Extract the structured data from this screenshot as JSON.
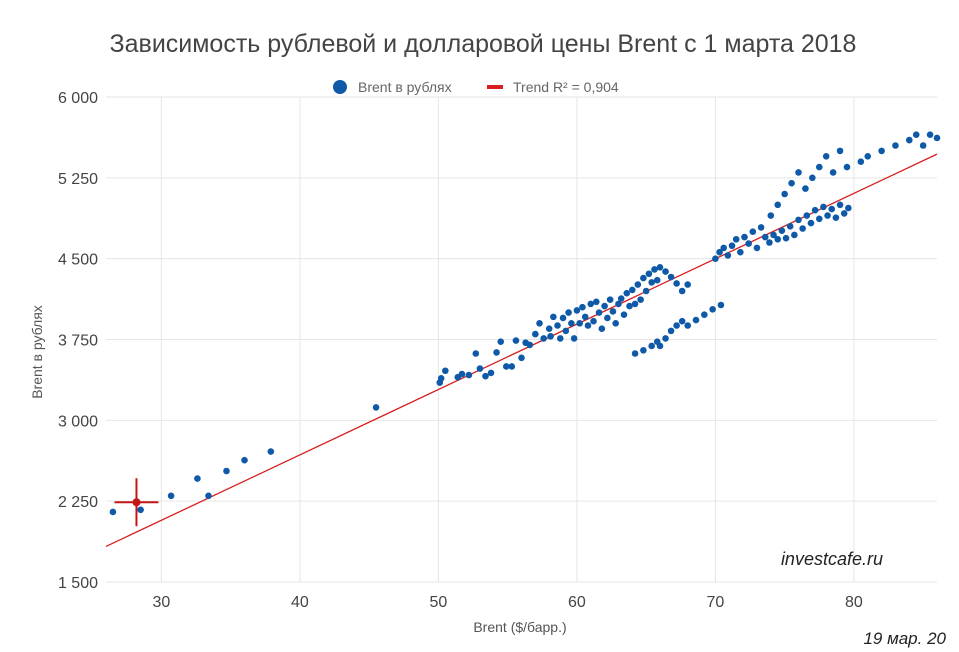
{
  "chart_data": {
    "type": "scatter",
    "title": "Зависимость рублевой и долларовой цены Brent с 1 марта 2018",
    "xlabel": "Brent ($/барр.)",
    "ylabel": "Brent в рублях",
    "xlim": [
      26,
      86
    ],
    "ylim": [
      1500,
      6000
    ],
    "x_ticks": [
      30,
      40,
      50,
      60,
      70,
      80
    ],
    "y_ticks": [
      1500,
      2250,
      3000,
      3750,
      4500,
      5250,
      6000
    ],
    "y_tick_labels": [
      "1 500",
      "2 250",
      "3 000",
      "3 750",
      "4 500",
      "5 250",
      "6 000"
    ],
    "grid": true,
    "legend_position": "top-center",
    "series": [
      {
        "name": "Brent в рублях",
        "color": "#0f5aa8",
        "points": [
          [
            26.5,
            2150
          ],
          [
            28.5,
            2170
          ],
          [
            30.7,
            2300
          ],
          [
            32.6,
            2460
          ],
          [
            33.4,
            2300
          ],
          [
            34.7,
            2530
          ],
          [
            36.0,
            2630
          ],
          [
            37.9,
            2710
          ],
          [
            45.5,
            3120
          ],
          [
            50.1,
            3350
          ],
          [
            50.2,
            3390
          ],
          [
            50.5,
            3460
          ],
          [
            51.4,
            3400
          ],
          [
            51.7,
            3430
          ],
          [
            52.2,
            3420
          ],
          [
            52.7,
            3620
          ],
          [
            53.0,
            3480
          ],
          [
            53.4,
            3410
          ],
          [
            53.8,
            3440
          ],
          [
            54.2,
            3630
          ],
          [
            54.5,
            3730
          ],
          [
            54.9,
            3500
          ],
          [
            55.3,
            3500
          ],
          [
            55.6,
            3740
          ],
          [
            56.0,
            3580
          ],
          [
            56.3,
            3720
          ],
          [
            56.6,
            3700
          ],
          [
            57.0,
            3800
          ],
          [
            57.3,
            3900
          ],
          [
            57.6,
            3760
          ],
          [
            58.0,
            3850
          ],
          [
            58.1,
            3780
          ],
          [
            58.3,
            3960
          ],
          [
            58.6,
            3880
          ],
          [
            58.8,
            3760
          ],
          [
            59.0,
            3950
          ],
          [
            59.2,
            3830
          ],
          [
            59.4,
            4000
          ],
          [
            59.6,
            3900
          ],
          [
            59.8,
            3760
          ],
          [
            60.0,
            4020
          ],
          [
            60.2,
            3900
          ],
          [
            60.4,
            4050
          ],
          [
            60.6,
            3960
          ],
          [
            60.8,
            3880
          ],
          [
            61.0,
            4080
          ],
          [
            61.2,
            3920
          ],
          [
            61.4,
            4100
          ],
          [
            61.6,
            4000
          ],
          [
            61.8,
            3850
          ],
          [
            62.0,
            4060
          ],
          [
            62.2,
            3950
          ],
          [
            62.4,
            4120
          ],
          [
            62.6,
            4010
          ],
          [
            62.8,
            3900
          ],
          [
            63.0,
            4080
          ],
          [
            63.2,
            4130
          ],
          [
            63.4,
            3980
          ],
          [
            63.6,
            4180
          ],
          [
            63.8,
            4060
          ],
          [
            64.0,
            4210
          ],
          [
            64.2,
            4080
          ],
          [
            64.4,
            4260
          ],
          [
            64.6,
            4120
          ],
          [
            64.8,
            4320
          ],
          [
            65.0,
            4200
          ],
          [
            65.2,
            4360
          ],
          [
            65.4,
            4280
          ],
          [
            65.6,
            4400
          ],
          [
            65.8,
            4300
          ],
          [
            66.0,
            4420
          ],
          [
            66.4,
            4380
          ],
          [
            66.8,
            4330
          ],
          [
            67.2,
            4270
          ],
          [
            67.6,
            4200
          ],
          [
            68.0,
            4260
          ],
          [
            66.0,
            3690
          ],
          [
            66.4,
            3760
          ],
          [
            66.8,
            3830
          ],
          [
            67.2,
            3880
          ],
          [
            67.6,
            3920
          ],
          [
            68.0,
            3880
          ],
          [
            68.6,
            3930
          ],
          [
            69.2,
            3980
          ],
          [
            69.8,
            4030
          ],
          [
            70.4,
            4070
          ],
          [
            64.2,
            3620
          ],
          [
            64.8,
            3650
          ],
          [
            65.4,
            3690
          ],
          [
            65.8,
            3730
          ],
          [
            70.0,
            4500
          ],
          [
            70.3,
            4560
          ],
          [
            70.6,
            4600
          ],
          [
            70.9,
            4530
          ],
          [
            71.2,
            4620
          ],
          [
            71.5,
            4680
          ],
          [
            71.8,
            4560
          ],
          [
            72.1,
            4700
          ],
          [
            72.4,
            4640
          ],
          [
            72.7,
            4750
          ],
          [
            73.0,
            4600
          ],
          [
            73.3,
            4790
          ],
          [
            73.6,
            4700
          ],
          [
            73.9,
            4650
          ],
          [
            74.2,
            4720
          ],
          [
            74.5,
            4680
          ],
          [
            74.8,
            4760
          ],
          [
            75.1,
            4690
          ],
          [
            75.4,
            4800
          ],
          [
            75.7,
            4720
          ],
          [
            76.0,
            4860
          ],
          [
            76.3,
            4780
          ],
          [
            76.6,
            4900
          ],
          [
            76.9,
            4830
          ],
          [
            77.2,
            4950
          ],
          [
            77.5,
            4870
          ],
          [
            77.8,
            4980
          ],
          [
            78.1,
            4900
          ],
          [
            78.4,
            4960
          ],
          [
            78.7,
            4880
          ],
          [
            79.0,
            5000
          ],
          [
            79.3,
            4920
          ],
          [
            79.6,
            4970
          ],
          [
            74.0,
            4900
          ],
          [
            74.5,
            5000
          ],
          [
            75.0,
            5100
          ],
          [
            75.5,
            5200
          ],
          [
            76.0,
            5300
          ],
          [
            76.5,
            5150
          ],
          [
            77.0,
            5250
          ],
          [
            77.5,
            5350
          ],
          [
            78.0,
            5450
          ],
          [
            78.5,
            5300
          ],
          [
            79.0,
            5500
          ],
          [
            79.5,
            5350
          ],
          [
            80.5,
            5400
          ],
          [
            81.0,
            5450
          ],
          [
            82.0,
            5500
          ],
          [
            83.0,
            5550
          ],
          [
            84.0,
            5600
          ],
          [
            84.5,
            5650
          ],
          [
            85.0,
            5550
          ],
          [
            85.5,
            5650
          ],
          [
            86.0,
            5620
          ]
        ]
      },
      {
        "name": "Trend R² = 0,904",
        "color": "#d81e1e",
        "line": [
          [
            26,
            1830
          ],
          [
            86,
            5470
          ]
        ]
      }
    ],
    "highlight_point": [
      28.2,
      2240
    ]
  },
  "watermark": "investcafe.ru",
  "date": "19 мар. 20"
}
